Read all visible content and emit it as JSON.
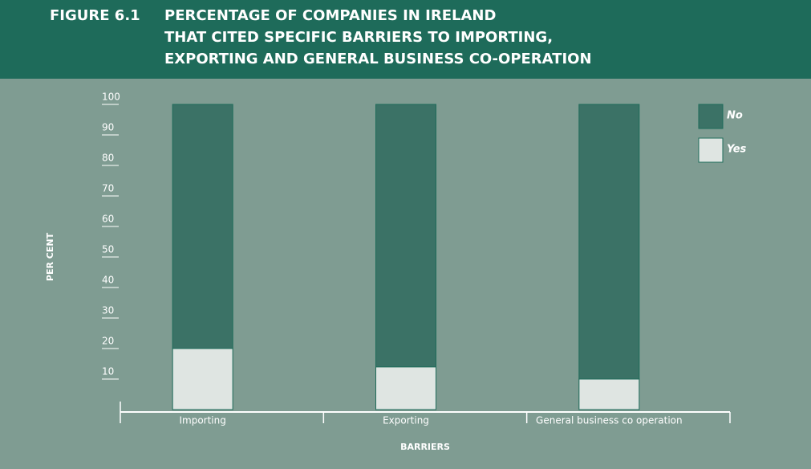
{
  "chart_data": {
    "type": "stacked_bar",
    "figure_label": "FIGURE 6.1",
    "title_lines": [
      "PERCENTAGE OF COMPANIES IN IRELAND",
      "THAT CITED SPECIFIC BARRIERS TO IMPORTING,",
      "EXPORTING AND GENERAL BUSINESS CO-OPERATION"
    ],
    "y_label": "PER CENT",
    "x_label": "BARRIERS",
    "categories": [
      "Importing",
      "Exporting",
      "General business co operation"
    ],
    "series": [
      {
        "name": "Yes",
        "color": "#dfe5e2",
        "values": [
          20,
          14,
          10
        ]
      },
      {
        "name": "No",
        "color": "#3b7266",
        "values": [
          80,
          86,
          90
        ]
      }
    ],
    "ylim": [
      0,
      100
    ],
    "yticks": [
      10,
      20,
      30,
      40,
      50,
      60,
      70,
      80,
      90,
      100
    ]
  }
}
